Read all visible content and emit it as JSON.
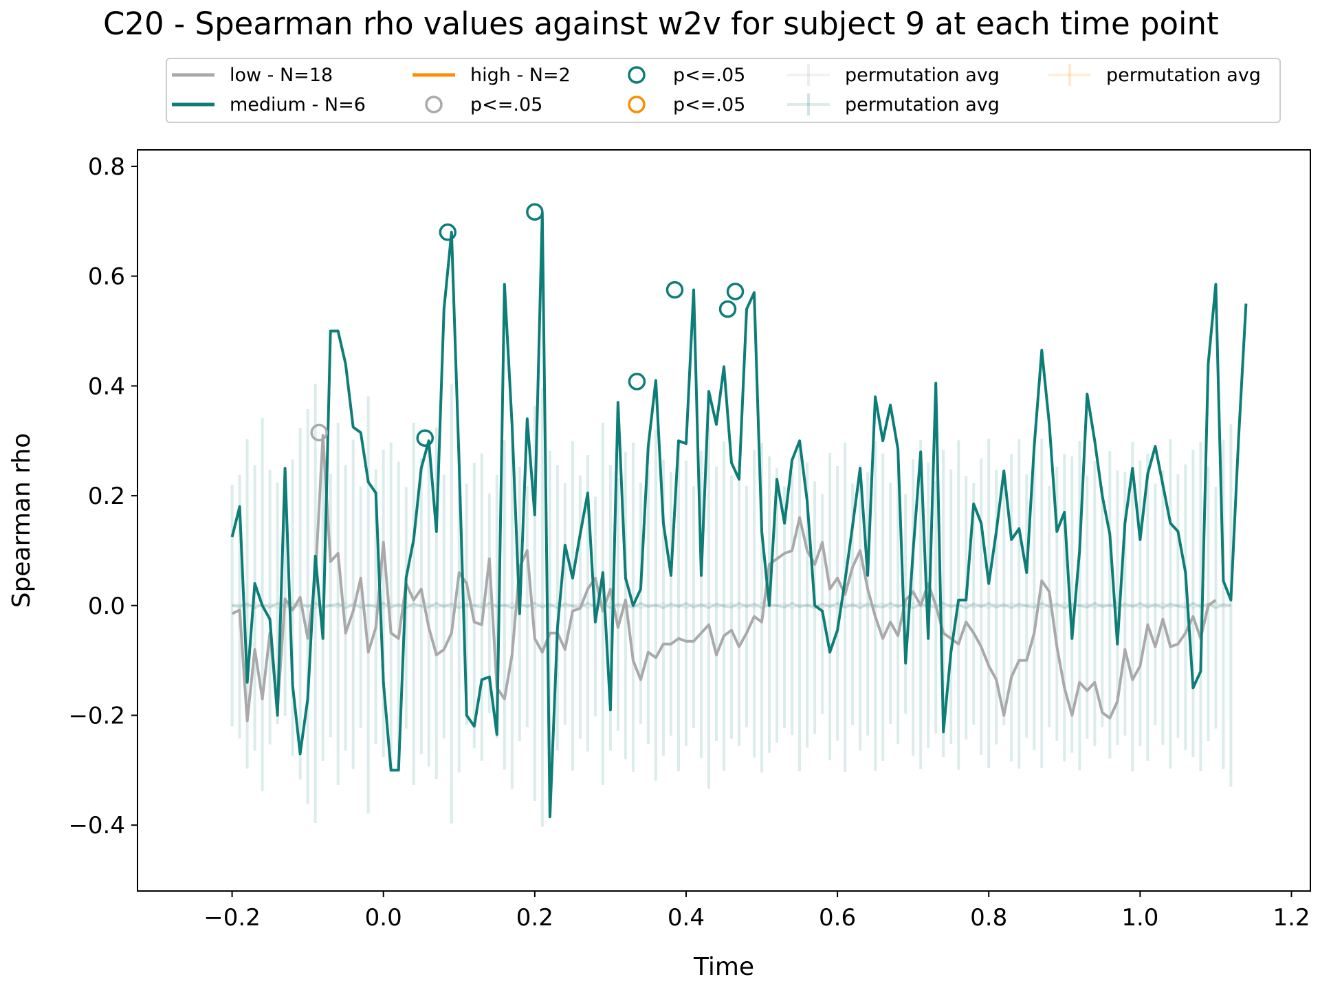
{
  "chart_data": {
    "type": "line",
    "title": "C20 - Spearman rho values against w2v for subject 9 at each time point",
    "xlabel": "Time",
    "ylabel": "Spearman rho",
    "xlim": [
      -0.325,
      1.225
    ],
    "ylim": [
      -0.52,
      0.83
    ],
    "xticks": [
      -0.2,
      0.0,
      0.2,
      0.4,
      0.6,
      0.8,
      1.0,
      1.2
    ],
    "xtick_labels": [
      "−0.2",
      "0.0",
      "0.2",
      "0.4",
      "0.6",
      "0.8",
      "1.0",
      "1.2"
    ],
    "yticks": [
      -0.4,
      -0.2,
      0.0,
      0.2,
      0.4,
      0.6,
      0.8
    ],
    "ytick_labels": [
      "−0.4",
      "−0.2",
      "0.0",
      "0.2",
      "0.4",
      "0.6",
      "0.8"
    ],
    "grid": false,
    "legend_position": "top, above plot",
    "x_start": -0.2,
    "x_step": 0.01,
    "series": [
      {
        "name": "low - N=18",
        "color": "#a9a9a9",
        "values": [
          -0.015,
          -0.008,
          -0.21,
          -0.08,
          -0.17,
          -0.05,
          -0.19,
          0.012,
          -0.008,
          0.015,
          -0.06,
          0.05,
          0.31,
          0.08,
          0.095,
          -0.05,
          -0.01,
          0.05,
          -0.085,
          -0.04,
          0.115,
          -0.05,
          -0.06,
          0.04,
          0.01,
          0.03,
          -0.04,
          -0.09,
          -0.08,
          -0.05,
          0.06,
          0.04,
          -0.03,
          -0.035,
          0.085,
          -0.15,
          -0.17,
          -0.09,
          0.07,
          0.1,
          -0.06,
          -0.085,
          -0.05,
          -0.05,
          -0.08,
          -0.01,
          -0.005,
          0.03,
          0.05,
          -0.01,
          0.03,
          -0.04,
          0.01,
          -0.1,
          -0.135,
          -0.085,
          -0.095,
          -0.07,
          -0.07,
          -0.06,
          -0.065,
          -0.065,
          -0.05,
          -0.035,
          -0.09,
          -0.055,
          -0.045,
          -0.075,
          -0.05,
          -0.02,
          -0.03,
          0.075,
          0.085,
          0.095,
          0.1,
          0.16,
          0.1,
          0.075,
          0.115,
          0.03,
          0.05,
          0.02,
          0.07,
          0.1,
          0.03,
          -0.02,
          -0.06,
          -0.03,
          -0.055,
          0.01,
          0.025,
          0.0,
          0.04,
          0.0,
          -0.05,
          -0.06,
          -0.07,
          -0.03,
          -0.05,
          -0.075,
          -0.11,
          -0.135,
          -0.2,
          -0.13,
          -0.1,
          -0.1,
          -0.05,
          0.045,
          0.025,
          -0.075,
          -0.15,
          -0.2,
          -0.14,
          -0.155,
          -0.14,
          -0.195,
          -0.205,
          -0.175,
          -0.08,
          -0.135,
          -0.11,
          -0.035,
          -0.075,
          -0.025,
          -0.075,
          -0.07,
          -0.05,
          -0.02,
          -0.06,
          0.0,
          0.01
        ]
      },
      {
        "name": "medium - N=6",
        "color": "#0d7d78",
        "values": [
          0.125,
          0.18,
          -0.14,
          0.04,
          0.0,
          -0.025,
          -0.2,
          0.25,
          -0.145,
          -0.27,
          -0.17,
          0.09,
          -0.06,
          0.5,
          0.5,
          0.44,
          0.325,
          0.315,
          0.225,
          0.205,
          -0.14,
          -0.3,
          -0.3,
          0.05,
          0.12,
          0.25,
          0.3,
          0.135,
          0.54,
          0.68,
          0.26,
          -0.2,
          -0.22,
          -0.135,
          -0.13,
          -0.235,
          0.585,
          0.33,
          -0.015,
          0.34,
          0.165,
          0.715,
          -0.385,
          -0.04,
          0.11,
          0.05,
          0.13,
          0.205,
          -0.03,
          0.06,
          -0.19,
          0.37,
          0.05,
          0.0,
          0.03,
          0.29,
          0.41,
          0.15,
          0.055,
          0.3,
          0.295,
          0.575,
          0.055,
          0.39,
          0.33,
          0.435,
          0.26,
          0.23,
          0.54,
          0.57,
          0.135,
          0.0,
          0.23,
          0.15,
          0.265,
          0.3,
          0.19,
          0.0,
          -0.01,
          -0.085,
          -0.045,
          0.045,
          0.145,
          0.25,
          0.055,
          0.38,
          0.3,
          0.365,
          0.285,
          -0.105,
          0.1,
          0.28,
          -0.06,
          0.405,
          -0.23,
          -0.085,
          0.01,
          0.01,
          0.185,
          0.15,
          0.04,
          0.135,
          0.245,
          0.12,
          0.14,
          0.06,
          0.29,
          0.465,
          0.33,
          0.135,
          0.17,
          -0.06,
          0.1,
          0.385,
          0.3,
          0.2,
          0.13,
          -0.07,
          0.15,
          0.25,
          0.12,
          0.24,
          0.29,
          0.22,
          0.15,
          0.135,
          0.06,
          -0.15,
          -0.12,
          0.44,
          0.585,
          0.045,
          0.01,
          0.3,
          0.55
        ]
      },
      {
        "name": "high - N=2",
        "color": "#ff8c00",
        "values": []
      },
      {
        "name": "p<=.05",
        "color": "#a9a9a9",
        "x": [
          -0.085
        ],
        "values": [
          0.315
        ]
      },
      {
        "name": "p<=.05",
        "color": "#0d7d78",
        "x": [
          0.055,
          0.085,
          0.2,
          0.335,
          0.385,
          0.455,
          0.465
        ],
        "values": [
          0.305,
          0.68,
          0.717,
          0.408,
          0.575,
          0.54,
          0.572
        ]
      },
      {
        "name": "p<=.05",
        "color": "#ff8c00",
        "x": [],
        "values": []
      },
      {
        "name": "permutation avg",
        "color": "#a9a9a9",
        "values": [
          0.0,
          0.002,
          -0.003,
          0.004,
          -0.002,
          0.003,
          -0.004,
          0.001,
          0.004,
          -0.003,
          0.002,
          -0.004,
          0.003,
          0.0,
          -0.003,
          0.004,
          -0.002,
          0.003,
          -0.001,
          0.002,
          -0.004,
          0.003,
          -0.002,
          0.004,
          -0.003,
          0.001,
          0.003,
          -0.004,
          0.002,
          -0.003,
          0.004,
          -0.002,
          0.0,
          0.003,
          -0.004,
          0.002,
          -0.001,
          0.004,
          -0.003,
          0.002,
          -0.004,
          0.003,
          -0.002,
          0.004,
          -0.003,
          0.001,
          0.003,
          -0.004,
          0.002,
          -0.003,
          0.004,
          -0.002,
          0.0,
          0.003,
          -0.004,
          0.002,
          -0.001,
          0.004,
          -0.003,
          0.002,
          -0.004,
          0.003,
          -0.002,
          0.004,
          -0.003,
          0.001,
          0.003,
          -0.004,
          0.002,
          -0.003,
          0.004,
          -0.002,
          0.0,
          0.003,
          -0.004,
          0.002,
          -0.001,
          0.004,
          -0.003,
          0.002,
          -0.004,
          0.003,
          -0.002,
          0.004,
          -0.003,
          0.001,
          0.003,
          -0.004,
          0.002,
          -0.003,
          0.004,
          -0.002,
          0.0,
          0.003,
          -0.004,
          0.002,
          -0.001,
          0.004,
          -0.003,
          0.002,
          -0.004,
          0.003,
          -0.002,
          0.004,
          -0.003,
          0.001,
          0.003,
          -0.004,
          0.002,
          -0.003,
          0.004,
          -0.002,
          0.0,
          0.003,
          -0.004,
          0.002,
          -0.001,
          0.004,
          -0.003,
          0.002,
          -0.004,
          0.003,
          -0.002,
          0.004,
          -0.003,
          0.001,
          0.003,
          -0.004,
          0.002,
          -0.003,
          0.004,
          -0.002,
          0.0
        ]
      },
      {
        "name": "permutation avg",
        "color": "#0d7d78",
        "values": [
          0.0,
          -0.002,
          0.003,
          -0.004,
          0.002,
          -0.003,
          0.004,
          -0.001,
          -0.004,
          0.003,
          -0.002,
          0.004,
          -0.003,
          0.0,
          0.003,
          -0.004,
          0.002,
          -0.003,
          0.001,
          -0.002,
          0.004,
          -0.003,
          0.002,
          -0.004,
          0.003,
          -0.001,
          -0.003,
          0.004,
          -0.002,
          0.003,
          -0.004,
          0.002,
          0.0,
          -0.003,
          0.004,
          -0.002,
          0.001,
          -0.004,
          0.003,
          -0.002,
          0.004,
          -0.003,
          0.002,
          -0.004,
          0.003,
          -0.001,
          -0.003,
          0.004,
          -0.002,
          0.003,
          -0.004,
          0.002,
          0.0,
          -0.003,
          0.004,
          -0.002,
          0.001,
          -0.004,
          0.003,
          -0.002,
          0.004,
          -0.003,
          0.002,
          -0.004,
          0.003,
          -0.001,
          -0.003,
          0.004,
          -0.002,
          0.003,
          -0.004,
          0.002,
          0.0,
          -0.003,
          0.004,
          -0.002,
          0.001,
          -0.004,
          0.003,
          -0.002,
          0.004,
          -0.003,
          0.002,
          -0.004,
          0.003,
          -0.001,
          -0.003,
          0.004,
          -0.002,
          0.003,
          -0.004,
          0.002,
          0.0,
          -0.003,
          0.004,
          -0.002,
          0.001,
          -0.004,
          0.003,
          -0.002,
          0.004,
          -0.003,
          0.002,
          -0.004,
          0.003,
          -0.001,
          -0.003,
          0.004,
          -0.002,
          0.003,
          -0.004,
          0.002,
          0.0,
          -0.003,
          0.004,
          -0.002,
          0.001,
          -0.004,
          0.003,
          -0.002,
          0.004,
          -0.003,
          0.002,
          -0.004,
          0.003,
          -0.001,
          -0.003,
          0.004,
          -0.002,
          0.003,
          -0.004,
          0.002,
          0.0
        ],
        "err": [
          0.22,
          0.24,
          0.3,
          0.26,
          0.34,
          0.25,
          0.22,
          0.2,
          0.27,
          0.32,
          0.36,
          0.4,
          0.28,
          0.24,
          0.33,
          0.26,
          0.3,
          0.22,
          0.38,
          0.25,
          0.28,
          0.3,
          0.26,
          0.22,
          0.33,
          0.27,
          0.29,
          0.32,
          0.24,
          0.4,
          0.3,
          0.22,
          0.26,
          0.28,
          0.2,
          0.24,
          0.3,
          0.33,
          0.25,
          0.22,
          0.36,
          0.4,
          0.28,
          0.26,
          0.22,
          0.3,
          0.24,
          0.27,
          0.2,
          0.33,
          0.26,
          0.23,
          0.28,
          0.3,
          0.22,
          0.25,
          0.32,
          0.27,
          0.24,
          0.3,
          0.26,
          0.22,
          0.28,
          0.33,
          0.25,
          0.3,
          0.24,
          0.26,
          0.22,
          0.28,
          0.3,
          0.27,
          0.25,
          0.22,
          0.24,
          0.3,
          0.26,
          0.23,
          0.2,
          0.28,
          0.25,
          0.3,
          0.22,
          0.26,
          0.24,
          0.3,
          0.28,
          0.22,
          0.25,
          0.2,
          0.27,
          0.3,
          0.26,
          0.23,
          0.28,
          0.25,
          0.3,
          0.24,
          0.22,
          0.27,
          0.3,
          0.25,
          0.22,
          0.28,
          0.3,
          0.24,
          0.26,
          0.3,
          0.22,
          0.25,
          0.28,
          0.27,
          0.3,
          0.24,
          0.26,
          0.22,
          0.28,
          0.25,
          0.24,
          0.3,
          0.26,
          0.28,
          0.22,
          0.25,
          0.3,
          0.24,
          0.26,
          0.28,
          0.3,
          0.25,
          0.22,
          0.3,
          0.33
        ]
      },
      {
        "name": "permutation avg",
        "color": "#ff8c00",
        "values": []
      }
    ]
  }
}
